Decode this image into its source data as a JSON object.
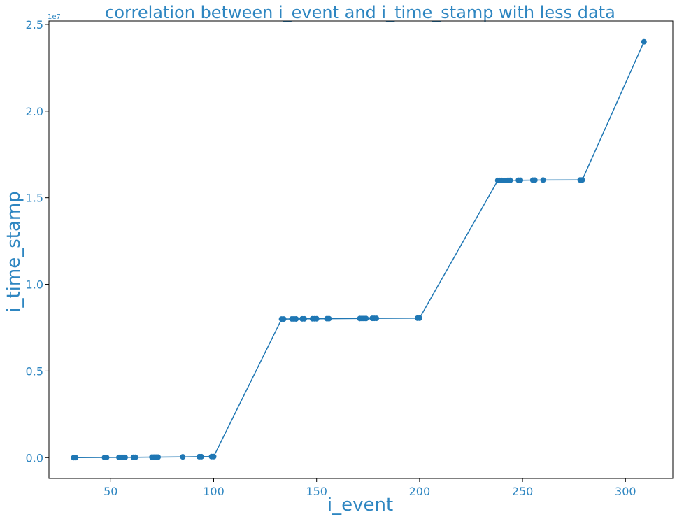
{
  "chart_data": {
    "type": "line",
    "title": "correlation between i_event and i_time_stamp with less data",
    "xlabel": "i_event",
    "ylabel": "i_time_stamp",
    "y_offset_text": "1e7",
    "xlim": [
      20,
      323
    ],
    "ylim": [
      -1200000,
      25200000
    ],
    "x_ticks": [
      50,
      100,
      150,
      200,
      250,
      300
    ],
    "x_tick_labels": [
      "50",
      "100",
      "150",
      "200",
      "250",
      "300"
    ],
    "y_ticks": [
      0,
      5000000,
      10000000,
      15000000,
      20000000,
      25000000
    ],
    "y_tick_labels": [
      "0.0",
      "0.5",
      "1.0",
      "1.5",
      "2.0",
      "2.5"
    ],
    "grid": false,
    "marker": "circle",
    "series_color": "#1f77b4",
    "text_color": "#2e86c1",
    "series": [
      {
        "x": [
          32,
          33,
          47,
          48,
          54,
          55,
          56,
          57,
          61,
          62,
          70,
          71,
          72,
          73,
          85,
          93,
          94,
          99,
          100,
          133,
          134,
          138,
          139,
          140,
          143,
          144,
          148,
          149,
          150,
          155,
          156,
          171,
          172,
          173,
          174,
          177,
          178,
          179,
          199,
          200,
          238,
          239,
          240,
          241,
          242,
          243,
          244,
          248,
          249,
          255,
          256,
          260,
          278,
          279,
          309
        ],
        "y": [
          0,
          0,
          10000,
          10000,
          15000,
          15000,
          15000,
          15000,
          20000,
          20000,
          30000,
          30000,
          30000,
          30000,
          45000,
          55000,
          55000,
          60000,
          60000,
          8000000,
          8000000,
          8005000,
          8005000,
          8005000,
          8010000,
          8010000,
          8015000,
          8015000,
          8015000,
          8020000,
          8020000,
          8030000,
          8030000,
          8030000,
          8030000,
          8040000,
          8040000,
          8040000,
          8050000,
          8050000,
          16000000,
          16000000,
          16000000,
          16000000,
          16000000,
          16005000,
          16005000,
          16010000,
          16010000,
          16015000,
          16015000,
          16020000,
          16025000,
          16025000,
          24000000
        ]
      }
    ]
  }
}
